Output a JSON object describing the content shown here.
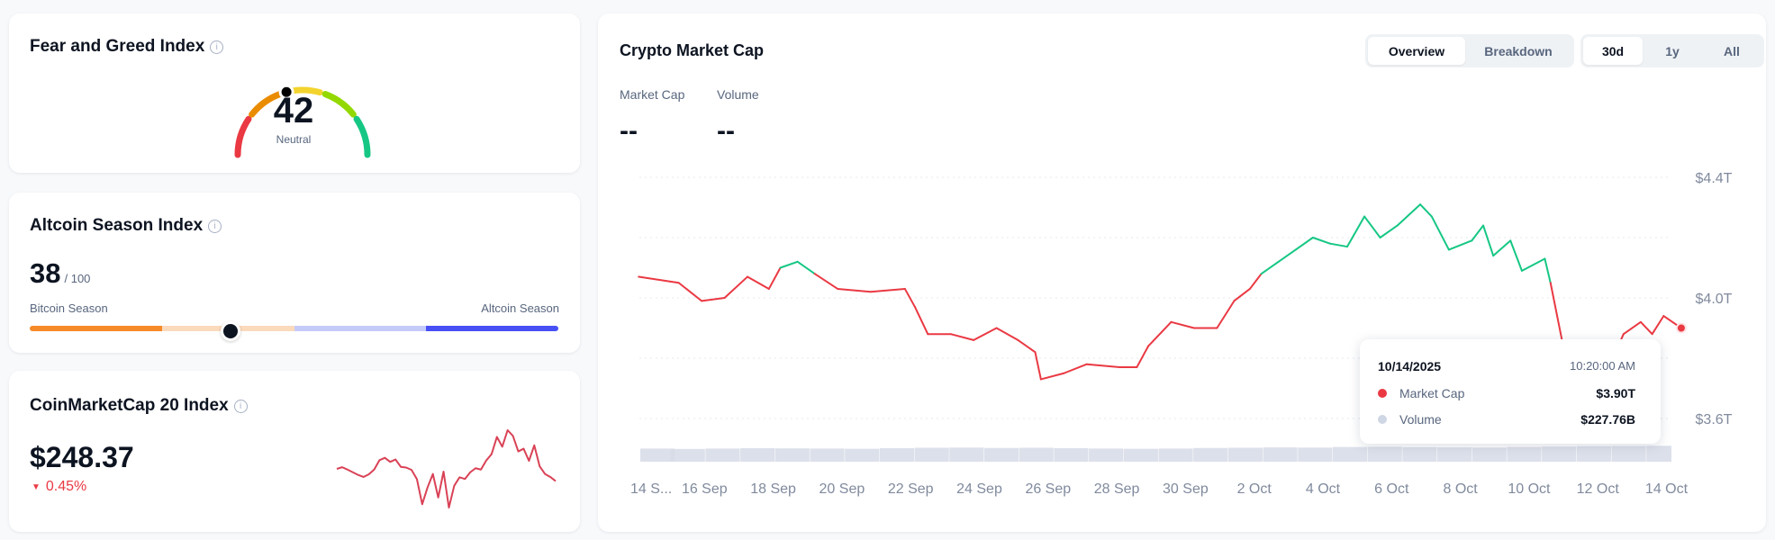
{
  "fear_greed": {
    "title": "Fear and Greed Index",
    "value": "42",
    "label": "Neutral",
    "level": 42,
    "segment_colors": [
      "#ea3943",
      "#ea8c00",
      "#f3d42f",
      "#93d900",
      "#16c784"
    ]
  },
  "altcoin_season": {
    "title": "Altcoin Season Index",
    "value": "38",
    "max": "/ 100",
    "level": 38,
    "left_label": "Bitcoin Season",
    "right_label": "Altcoin Season",
    "segment_colors": [
      "#f68a28",
      "#fbdabc",
      "#c5cbf8",
      "#4750f5"
    ]
  },
  "cmc20": {
    "title": "CoinMarketCap 20 Index",
    "price": "$248.37",
    "change": "0.45%",
    "change_direction": "down",
    "sparkline": [
      252,
      252.5,
      251.8,
      251,
      250.2,
      249.6,
      250.4,
      251.8,
      254.6,
      255.3,
      254.1,
      254.8,
      252.6,
      252.4,
      251.7,
      249,
      241.5,
      246.5,
      250.5,
      243.5,
      251.2,
      240.5,
      247,
      249.5,
      249,
      251,
      252.2,
      251.8,
      254.5,
      256.4,
      261.5,
      258.6,
      263.5,
      261.8,
      257.2,
      258,
      254.4,
      259,
      252.8,
      250.5,
      249.6,
      248.37
    ]
  },
  "market": {
    "title": "Crypto Market Cap",
    "view_tabs": [
      {
        "label": "Overview",
        "active": true
      },
      {
        "label": "Breakdown",
        "active": false
      }
    ],
    "range_tabs": [
      {
        "label": "30d",
        "active": true
      },
      {
        "label": "1y",
        "active": false
      },
      {
        "label": "All",
        "active": false
      }
    ],
    "stats": [
      {
        "label": "Market Cap",
        "value": "--"
      },
      {
        "label": "Volume",
        "value": "--"
      }
    ],
    "tooltip": {
      "date": "10/14/2025",
      "time": "10:20:00 AM",
      "rows": [
        {
          "label": "Market Cap",
          "value": "$3.90T",
          "color": "#ea3943"
        },
        {
          "label": "Volume",
          "value": "$227.76B",
          "color": "#cfd6e4"
        }
      ]
    }
  },
  "chart_data": {
    "type": "line",
    "ylabel": "",
    "xlabel": "",
    "ylim": [
      3.6,
      4.4
    ],
    "y_ticks": [
      "$3.6T",
      "$4.0T",
      "$4.4T"
    ],
    "y_tick_values": [
      3.6,
      4.0,
      4.4
    ],
    "y_grid_values": [
      3.6,
      3.8,
      4.0,
      4.2,
      4.4
    ],
    "x_range": [
      "2025-09-14T00:00",
      "2025-10-14T10:20"
    ],
    "x_ticks": [
      {
        "label": "14 S...",
        "date": "2025-09-14"
      },
      {
        "label": "16 Sep",
        "date": "2025-09-16"
      },
      {
        "label": "18 Sep",
        "date": "2025-09-18"
      },
      {
        "label": "20 Sep",
        "date": "2025-09-20"
      },
      {
        "label": "22 Sep",
        "date": "2025-09-22"
      },
      {
        "label": "24 Sep",
        "date": "2025-09-24"
      },
      {
        "label": "26 Sep",
        "date": "2025-09-26"
      },
      {
        "label": "28 Sep",
        "date": "2025-09-28"
      },
      {
        "label": "30 Sep",
        "date": "2025-09-30"
      },
      {
        "label": "2 Oct",
        "date": "2025-10-02"
      },
      {
        "label": "4 Oct",
        "date": "2025-10-04"
      },
      {
        "label": "6 Oct",
        "date": "2025-10-06"
      },
      {
        "label": "8 Oct",
        "date": "2025-10-08"
      },
      {
        "label": "10 Oct",
        "date": "2025-10-10"
      },
      {
        "label": "12 Oct",
        "date": "2025-10-12"
      },
      {
        "label": "14 Oct",
        "date": "2025-10-14"
      }
    ],
    "grid": true,
    "up_color": "#16c784",
    "down_color": "#ea3943",
    "series": [
      {
        "name": "Market Cap",
        "unit": "T USD",
        "points": [
          [
            "2025-09-14T02:00",
            4.07
          ],
          [
            "2025-09-15T06:00",
            4.05
          ],
          [
            "2025-09-15T22:00",
            3.99
          ],
          [
            "2025-09-16T14:00",
            4.0
          ],
          [
            "2025-09-17T06:00",
            4.07
          ],
          [
            "2025-09-17T21:00",
            4.03
          ],
          [
            "2025-09-18T05:00",
            4.1
          ],
          [
            "2025-09-18T17:00",
            4.12
          ],
          [
            "2025-09-19T05:00",
            4.08
          ],
          [
            "2025-09-19T21:00",
            4.03
          ],
          [
            "2025-09-20T20:00",
            4.02
          ],
          [
            "2025-09-21T20:00",
            4.03
          ],
          [
            "2025-09-22T03:00",
            3.97
          ],
          [
            "2025-09-22T12:00",
            3.88
          ],
          [
            "2025-09-23T04:00",
            3.88
          ],
          [
            "2025-09-23T20:00",
            3.86
          ],
          [
            "2025-09-24T12:00",
            3.9
          ],
          [
            "2025-09-25T03:00",
            3.86
          ],
          [
            "2025-09-25T15:00",
            3.82
          ],
          [
            "2025-09-25T19:00",
            3.73
          ],
          [
            "2025-09-26T11:00",
            3.75
          ],
          [
            "2025-09-27T03:00",
            3.78
          ],
          [
            "2025-09-28T02:00",
            3.77
          ],
          [
            "2025-09-28T14:00",
            3.77
          ],
          [
            "2025-09-28T22:00",
            3.84
          ],
          [
            "2025-09-29T14:00",
            3.92
          ],
          [
            "2025-09-30T06:00",
            3.9
          ],
          [
            "2025-09-30T22:00",
            3.9
          ],
          [
            "2025-10-01T10:00",
            3.99
          ],
          [
            "2025-10-01T21:00",
            4.03
          ],
          [
            "2025-10-02T05:00",
            4.08
          ],
          [
            "2025-10-02T17:00",
            4.12
          ],
          [
            "2025-10-03T05:00",
            4.16
          ],
          [
            "2025-10-03T17:00",
            4.2
          ],
          [
            "2025-10-04T05:00",
            4.18
          ],
          [
            "2025-10-04T17:00",
            4.17
          ],
          [
            "2025-10-05T05:00",
            4.27
          ],
          [
            "2025-10-05T16:00",
            4.2
          ],
          [
            "2025-10-06T04:00",
            4.24
          ],
          [
            "2025-10-06T20:00",
            4.31
          ],
          [
            "2025-10-07T04:00",
            4.27
          ],
          [
            "2025-10-07T16:00",
            4.16
          ],
          [
            "2025-10-08T08:00",
            4.19
          ],
          [
            "2025-10-08T16:00",
            4.24
          ],
          [
            "2025-10-08T23:00",
            4.14
          ],
          [
            "2025-10-09T11:00",
            4.19
          ],
          [
            "2025-10-09T19:00",
            4.09
          ],
          [
            "2025-10-10T11:00",
            4.13
          ],
          [
            "2025-10-10T15:00",
            4.05
          ],
          [
            "2025-10-10T23:00",
            3.86
          ],
          [
            "2025-10-11T11:00",
            3.65
          ],
          [
            "2025-10-12T06:00",
            3.75
          ],
          [
            "2025-10-12T18:00",
            3.88
          ],
          [
            "2025-10-13T06:00",
            3.92
          ],
          [
            "2025-10-13T14:00",
            3.88
          ],
          [
            "2025-10-13T22:00",
            3.94
          ],
          [
            "2025-10-14T10:20",
            3.9
          ]
        ]
      },
      {
        "name": "Volume",
        "unit": "B USD",
        "values": [
          150,
          140,
          150,
          160,
          155,
          150,
          145,
          160,
          170,
          175,
          165,
          170,
          160,
          150,
          145,
          150,
          165,
          170,
          180,
          175,
          190,
          195,
          185,
          180,
          175,
          190,
          200,
          210,
          215,
          220,
          227.76
        ]
      }
    ]
  }
}
